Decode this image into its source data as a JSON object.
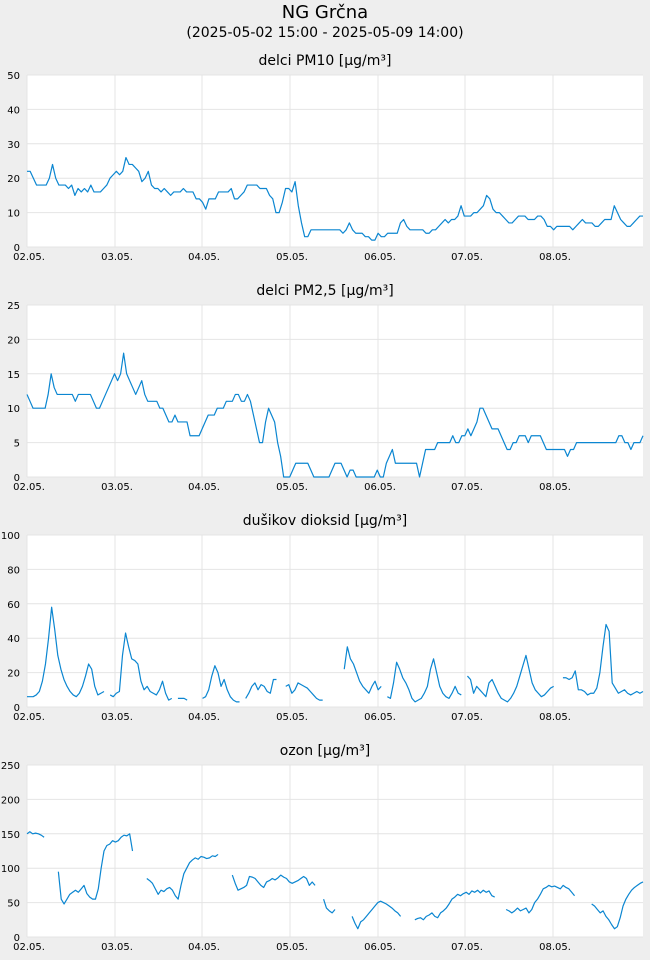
{
  "page": {
    "title": "NG Grčna",
    "subtitle": "(2025-05-02 15:00 - 2025-05-09 14:00)"
  },
  "colors": {
    "series": "#0b86d1",
    "grid": "#e4e4e4",
    "plot_background": "#ffffff",
    "page_background": "#eeeeee"
  },
  "chart_data": [
    {
      "type": "line",
      "title": "delci PM10 [µg/m³]",
      "ylim": [
        0,
        50
      ],
      "yticks": [
        0,
        10,
        20,
        30,
        40,
        50
      ],
      "xticks": [
        "02.05.",
        "03.05.",
        "04.05.",
        "05.05.",
        "06.05.",
        "07.05.",
        "08.05."
      ],
      "grid": true,
      "series": [
        {
          "values": [
            22,
            22,
            20,
            18,
            18,
            18,
            18,
            20,
            24,
            20,
            18,
            18,
            18,
            17,
            18,
            15,
            17,
            16,
            17,
            16,
            18,
            16,
            16,
            16,
            17,
            18,
            20,
            21,
            22,
            21,
            22,
            26,
            24,
            24,
            23,
            22,
            19,
            20,
            22,
            18,
            17,
            17,
            16,
            17,
            16,
            15,
            16,
            16,
            16,
            17,
            16,
            16,
            16,
            14,
            14,
            13,
            11,
            14,
            14,
            14,
            16,
            16,
            16,
            16,
            17,
            14,
            14,
            15,
            16,
            18,
            18,
            18,
            18,
            17,
            17,
            17,
            15,
            14,
            10,
            10,
            13,
            17,
            17,
            16,
            19,
            12,
            7,
            3,
            3,
            5,
            5,
            5,
            5,
            5,
            5,
            5,
            5,
            5,
            5,
            4,
            5,
            7,
            5,
            4,
            4,
            4,
            3,
            3,
            2,
            2,
            4,
            3,
            3,
            4,
            4,
            4,
            4,
            7,
            8,
            6,
            5,
            5,
            5,
            5,
            5,
            4,
            4,
            5,
            5,
            6,
            7,
            8,
            7,
            8,
            8,
            9,
            12,
            9,
            9,
            9,
            10,
            10,
            11,
            12,
            15,
            14,
            11,
            10,
            10,
            9,
            8,
            7,
            7,
            8,
            9,
            9,
            9,
            8,
            8,
            8,
            9,
            9,
            8,
            6,
            6,
            5,
            6,
            6,
            6,
            6,
            6,
            5,
            6,
            7,
            8,
            7,
            7,
            7,
            6,
            6,
            7,
            8,
            8,
            8,
            12,
            10,
            8,
            7,
            6,
            6,
            7,
            8,
            9,
            9
          ]
        }
      ]
    },
    {
      "type": "line",
      "title": "delci PM2,5 [µg/m³]",
      "ylim": [
        0,
        25
      ],
      "yticks": [
        0,
        5,
        10,
        15,
        20,
        25
      ],
      "xticks": [
        "02.05.",
        "03.05.",
        "04.05.",
        "05.05.",
        "06.05.",
        "07.05.",
        "08.05."
      ],
      "grid": true,
      "series": [
        {
          "values": [
            12,
            11,
            10,
            10,
            10,
            10,
            10,
            12,
            15,
            13,
            12,
            12,
            12,
            12,
            12,
            12,
            11,
            12,
            12,
            12,
            12,
            12,
            11,
            10,
            10,
            11,
            12,
            13,
            14,
            15,
            14,
            15,
            18,
            15,
            14,
            13,
            12,
            13,
            14,
            12,
            11,
            11,
            11,
            11,
            10,
            10,
            9,
            8,
            8,
            9,
            8,
            8,
            8,
            8,
            6,
            6,
            6,
            6,
            7,
            8,
            9,
            9,
            9,
            10,
            10,
            10,
            11,
            11,
            11,
            12,
            12,
            11,
            11,
            12,
            11,
            9,
            7,
            5,
            5,
            8,
            10,
            9,
            8,
            5,
            3,
            0,
            0,
            0,
            1,
            2,
            2,
            2,
            2,
            2,
            1,
            0,
            0,
            0,
            0,
            0,
            0,
            1,
            2,
            2,
            2,
            1,
            0,
            1,
            1,
            0,
            0,
            0,
            0,
            0,
            0,
            0,
            1,
            0,
            0,
            2,
            3,
            4,
            2,
            2,
            2,
            2,
            2,
            2,
            2,
            2,
            0,
            2,
            4,
            4,
            4,
            4,
            5,
            5,
            5,
            5,
            5,
            6,
            5,
            5,
            6,
            6,
            7,
            6,
            7,
            8,
            10,
            10,
            9,
            8,
            7,
            7,
            7,
            6,
            5,
            4,
            4,
            5,
            5,
            6,
            6,
            6,
            5,
            6,
            6,
            6,
            6,
            5,
            4,
            4,
            4,
            4,
            4,
            4,
            4,
            3,
            4,
            4,
            5,
            5,
            5,
            5,
            5,
            5,
            5,
            5,
            5,
            5,
            5,
            5,
            5,
            5,
            6,
            6,
            5,
            5,
            4,
            5,
            5,
            5,
            6
          ]
        }
      ]
    },
    {
      "type": "line",
      "title": "dušikov dioksid [µg/m³]",
      "ylim": [
        0,
        100
      ],
      "yticks": [
        0,
        20,
        40,
        60,
        80,
        100
      ],
      "xticks": [
        "02.05.",
        "03.05.",
        "04.05.",
        "05.05.",
        "06.05.",
        "07.05.",
        "08.05."
      ],
      "grid": true,
      "series": [
        {
          "values": [
            6,
            6,
            6,
            7,
            9,
            15,
            25,
            40,
            58,
            45,
            30,
            22,
            16,
            12,
            9,
            7,
            6,
            8,
            12,
            18,
            25,
            22,
            12,
            7,
            8,
            9,
            null,
            7,
            6,
            8,
            9,
            30,
            43,
            35,
            28,
            27,
            25,
            15,
            10,
            12,
            9,
            8,
            7,
            10,
            15,
            8,
            4,
            5,
            null,
            5,
            5,
            5,
            4,
            null,
            null,
            null,
            null,
            5,
            6,
            10,
            18,
            24,
            20,
            12,
            16,
            10,
            6,
            4,
            3,
            3,
            null,
            5,
            8,
            12,
            14,
            10,
            13,
            12,
            9,
            8,
            16,
            16,
            null,
            null,
            12,
            13,
            8,
            10,
            14,
            13,
            12,
            11,
            9,
            7,
            5,
            4,
            4,
            null,
            null,
            null,
            null,
            null,
            null,
            22,
            35,
            28,
            25,
            20,
            15,
            12,
            10,
            8,
            12,
            15,
            10,
            12,
            null,
            6,
            5,
            14,
            26,
            22,
            17,
            14,
            10,
            5,
            3,
            4,
            5,
            8,
            12,
            22,
            28,
            20,
            12,
            8,
            6,
            5,
            8,
            12,
            8,
            7,
            null,
            18,
            16,
            8,
            12,
            10,
            8,
            6,
            14,
            16,
            12,
            8,
            5,
            4,
            3,
            5,
            8,
            12,
            18,
            24,
            30,
            22,
            14,
            10,
            8,
            6,
            7,
            9,
            11,
            12,
            null,
            null,
            17,
            17,
            16,
            17,
            21,
            10,
            10,
            9,
            7,
            8,
            8,
            11,
            20,
            35,
            48,
            44,
            14,
            11,
            8,
            9,
            10,
            8,
            7,
            8,
            9,
            8,
            9
          ]
        }
      ]
    },
    {
      "type": "line",
      "title": "ozon [µg/m³]",
      "ylim": [
        0,
        250
      ],
      "yticks": [
        0,
        50,
        100,
        150,
        200,
        250
      ],
      "xticks": [
        "02.05.",
        "03.05.",
        "04.05.",
        "05.05.",
        "06.05.",
        "07.05.",
        "08.05."
      ],
      "grid": true,
      "series": [
        {
          "values": [
            150,
            153,
            150,
            151,
            150,
            148,
            145,
            null,
            null,
            null,
            null,
            95,
            55,
            48,
            55,
            62,
            65,
            68,
            65,
            70,
            75,
            63,
            58,
            55,
            55,
            70,
            100,
            125,
            133,
            135,
            140,
            138,
            140,
            145,
            148,
            147,
            150,
            125,
            null,
            null,
            null,
            null,
            85,
            82,
            78,
            70,
            62,
            68,
            66,
            70,
            72,
            68,
            60,
            55,
            75,
            92,
            100,
            108,
            112,
            115,
            113,
            117,
            116,
            114,
            115,
            118,
            117,
            120,
            null,
            null,
            null,
            null,
            90,
            78,
            68,
            70,
            72,
            75,
            88,
            87,
            85,
            80,
            75,
            72,
            80,
            82,
            85,
            83,
            86,
            90,
            87,
            85,
            80,
            78,
            80,
            82,
            85,
            88,
            85,
            75,
            80,
            75,
            null,
            null,
            55,
            42,
            38,
            35,
            40,
            null,
            null,
            null,
            null,
            null,
            30,
            20,
            12,
            22,
            25,
            30,
            35,
            40,
            45,
            50,
            52,
            50,
            48,
            45,
            42,
            38,
            35,
            30,
            null,
            null,
            null,
            null,
            25,
            27,
            28,
            25,
            30,
            32,
            35,
            30,
            28,
            35,
            38,
            42,
            48,
            55,
            58,
            62,
            60,
            63,
            65,
            62,
            67,
            65,
            68,
            64,
            68,
            65,
            67,
            60,
            58,
            null,
            null,
            null,
            40,
            38,
            35,
            38,
            42,
            38,
            40,
            42,
            35,
            40,
            50,
            55,
            62,
            70,
            72,
            75,
            73,
            74,
            72,
            70,
            75,
            72,
            70,
            65,
            60,
            null,
            null,
            null,
            null,
            null,
            48,
            45,
            40,
            35,
            38,
            30,
            25,
            18,
            12,
            15,
            28,
            45,
            55,
            62,
            68,
            72,
            75,
            78,
            80
          ]
        }
      ]
    }
  ]
}
